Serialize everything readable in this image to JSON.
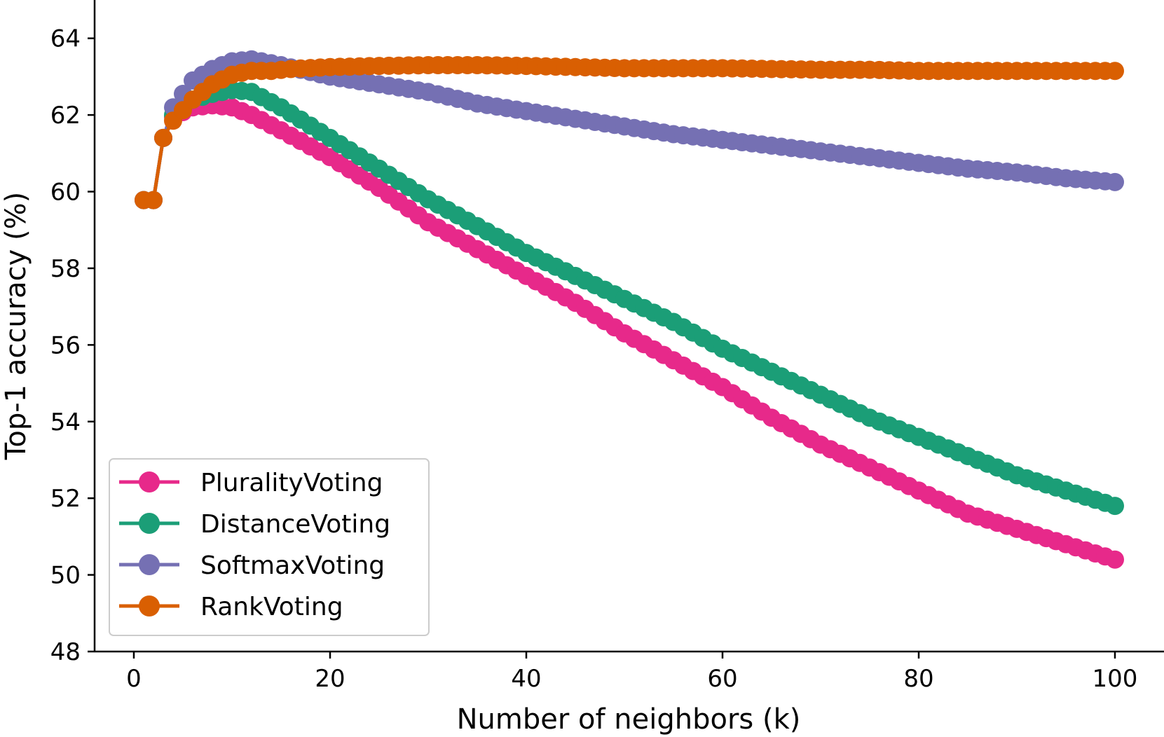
{
  "chart_data": {
    "type": "line",
    "title": "",
    "xlabel": "Number of neighbors (k)",
    "ylabel": "Top-1 accuracy (%)",
    "xlim": [
      -4,
      105
    ],
    "ylim": [
      48,
      65
    ],
    "xticks": [
      "0",
      "20",
      "40",
      "60",
      "80",
      "100"
    ],
    "yticks": [
      "48",
      "50",
      "52",
      "54",
      "56",
      "58",
      "60",
      "62",
      "64"
    ],
    "grid": false,
    "legend_position": "lower-left",
    "marker": "circle",
    "series": [
      {
        "name": "PluralityVoting",
        "color": "#e7298a",
        "points": [
          [
            1,
            59.78
          ],
          [
            2,
            59.78
          ],
          [
            3,
            61.4
          ],
          [
            4,
            61.95
          ],
          [
            6,
            62.2
          ],
          [
            8,
            62.25
          ],
          [
            10,
            62.2
          ],
          [
            12,
            62.0
          ],
          [
            15,
            61.6
          ],
          [
            20,
            60.9
          ],
          [
            25,
            60.1
          ],
          [
            30,
            59.2
          ],
          [
            35,
            58.5
          ],
          [
            40,
            57.8
          ],
          [
            45,
            57.1
          ],
          [
            50,
            56.3
          ],
          [
            55,
            55.6
          ],
          [
            60,
            54.9
          ],
          [
            65,
            54.1
          ],
          [
            70,
            53.4
          ],
          [
            75,
            52.8
          ],
          [
            80,
            52.2
          ],
          [
            85,
            51.6
          ],
          [
            90,
            51.2
          ],
          [
            95,
            50.8
          ],
          [
            100,
            50.4
          ]
        ]
      },
      {
        "name": "DistanceVoting",
        "color": "#1b9e77",
        "points": [
          [
            1,
            59.78
          ],
          [
            2,
            59.78
          ],
          [
            3,
            61.4
          ],
          [
            4,
            62.0
          ],
          [
            6,
            62.4
          ],
          [
            8,
            62.55
          ],
          [
            10,
            62.65
          ],
          [
            12,
            62.6
          ],
          [
            15,
            62.2
          ],
          [
            20,
            61.4
          ],
          [
            25,
            60.6
          ],
          [
            30,
            59.8
          ],
          [
            35,
            59.1
          ],
          [
            40,
            58.4
          ],
          [
            45,
            57.8
          ],
          [
            50,
            57.2
          ],
          [
            55,
            56.6
          ],
          [
            60,
            55.9
          ],
          [
            65,
            55.3
          ],
          [
            70,
            54.7
          ],
          [
            75,
            54.1
          ],
          [
            80,
            53.6
          ],
          [
            85,
            53.1
          ],
          [
            90,
            52.6
          ],
          [
            95,
            52.2
          ],
          [
            100,
            51.8
          ]
        ]
      },
      {
        "name": "SoftmaxVoting",
        "color": "#7570b3",
        "points": [
          [
            1,
            59.78
          ],
          [
            2,
            59.78
          ],
          [
            3,
            61.4
          ],
          [
            4,
            62.2
          ],
          [
            6,
            62.9
          ],
          [
            8,
            63.2
          ],
          [
            10,
            63.4
          ],
          [
            12,
            63.45
          ],
          [
            15,
            63.3
          ],
          [
            20,
            63.0
          ],
          [
            25,
            62.8
          ],
          [
            30,
            62.6
          ],
          [
            35,
            62.3
          ],
          [
            40,
            62.1
          ],
          [
            45,
            61.9
          ],
          [
            50,
            61.7
          ],
          [
            55,
            61.5
          ],
          [
            60,
            61.35
          ],
          [
            65,
            61.2
          ],
          [
            70,
            61.05
          ],
          [
            75,
            60.9
          ],
          [
            80,
            60.75
          ],
          [
            85,
            60.6
          ],
          [
            90,
            60.5
          ],
          [
            95,
            60.35
          ],
          [
            100,
            60.25
          ]
        ]
      },
      {
        "name": "RankVoting",
        "color": "#d95f02",
        "points": [
          [
            1,
            59.78
          ],
          [
            2,
            59.78
          ],
          [
            3,
            61.4
          ],
          [
            4,
            61.85
          ],
          [
            6,
            62.4
          ],
          [
            8,
            62.8
          ],
          [
            10,
            63.05
          ],
          [
            12,
            63.15
          ],
          [
            14,
            63.15
          ],
          [
            16,
            63.2
          ],
          [
            20,
            63.25
          ],
          [
            25,
            63.28
          ],
          [
            30,
            63.3
          ],
          [
            35,
            63.3
          ],
          [
            40,
            63.28
          ],
          [
            45,
            63.25
          ],
          [
            50,
            63.22
          ],
          [
            55,
            63.22
          ],
          [
            60,
            63.22
          ],
          [
            65,
            63.2
          ],
          [
            70,
            63.18
          ],
          [
            75,
            63.18
          ],
          [
            80,
            63.15
          ],
          [
            85,
            63.15
          ],
          [
            90,
            63.15
          ],
          [
            95,
            63.15
          ],
          [
            100,
            63.15
          ]
        ]
      }
    ]
  }
}
